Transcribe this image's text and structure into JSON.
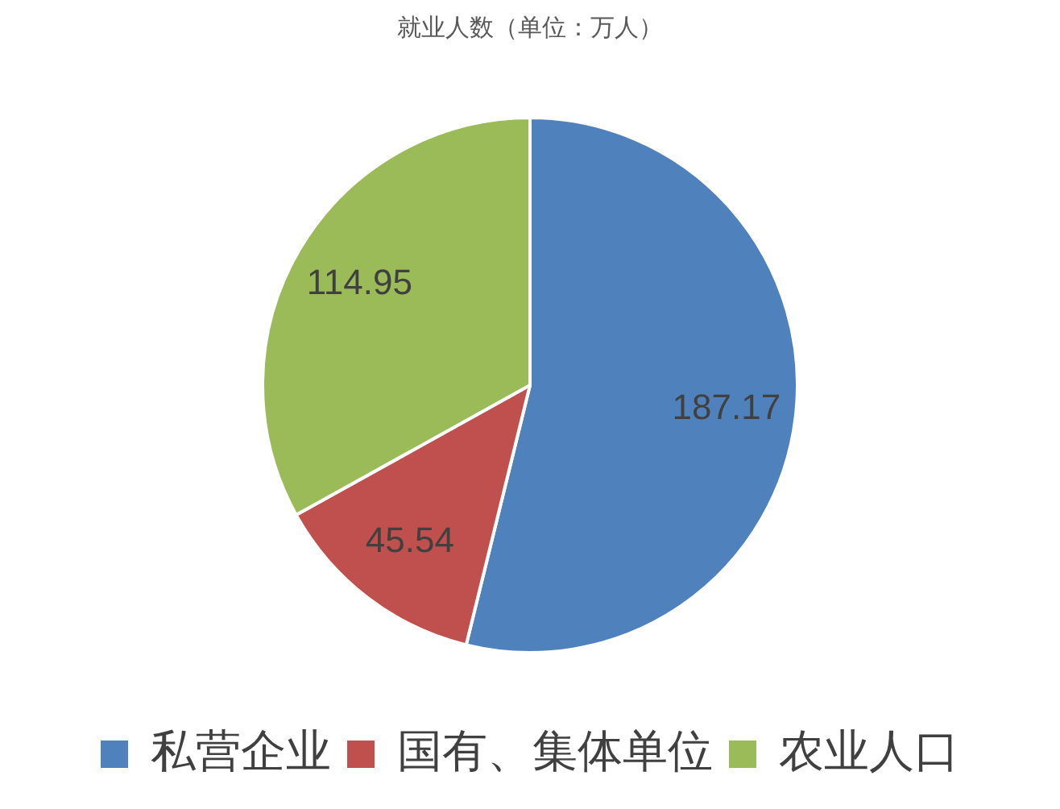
{
  "chart_data": {
    "type": "pie",
    "title": "就业人数（单位：万人）",
    "categories": [
      "私营企业",
      "国有、集体单位",
      "农业人口"
    ],
    "values": [
      187.17,
      45.54,
      114.95
    ],
    "colors": [
      "#4f81bd",
      "#c0504d",
      "#9bbb59"
    ],
    "data_labels": true,
    "legend": "bottom"
  }
}
